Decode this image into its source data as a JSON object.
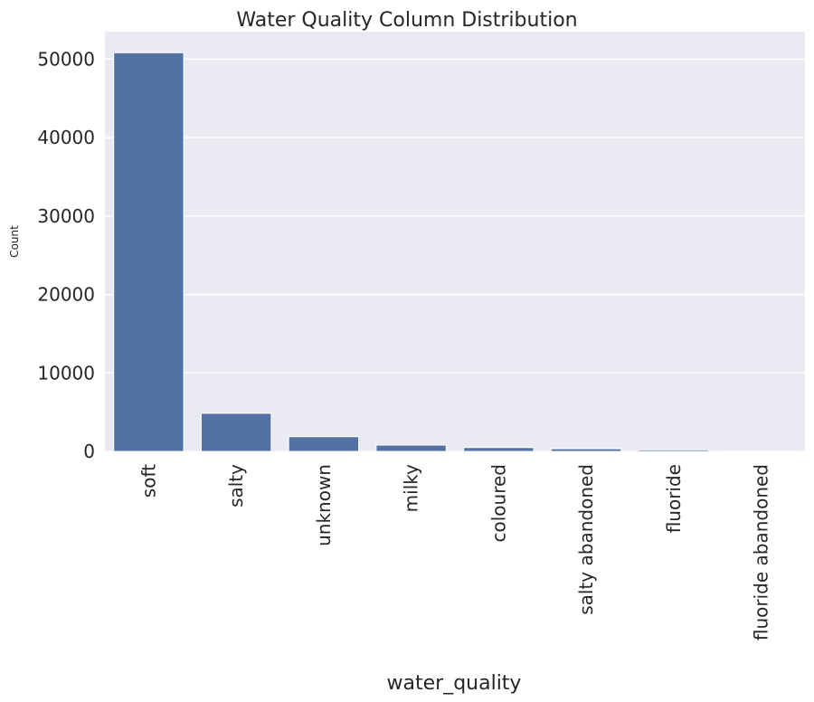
{
  "chart_data": {
    "type": "bar",
    "title": "Water Quality Column Distribution",
    "xlabel": "water_quality",
    "ylabel": "Count",
    "categories": [
      "soft",
      "salty",
      "unknown",
      "milky",
      "coloured",
      "salty abandoned",
      "fluoride",
      "fluoride abandoned"
    ],
    "values": [
      50818,
      4856,
      1876,
      804,
      490,
      339,
      200,
      17
    ],
    "ylim": [
      0,
      53500
    ],
    "yticks": [
      0,
      10000,
      20000,
      30000,
      40000,
      50000
    ],
    "grid": true,
    "bar_color": "#5471a4",
    "background_color": "#eaeaf2",
    "grid_color": "#ffffff",
    "text_color": "#262626"
  }
}
